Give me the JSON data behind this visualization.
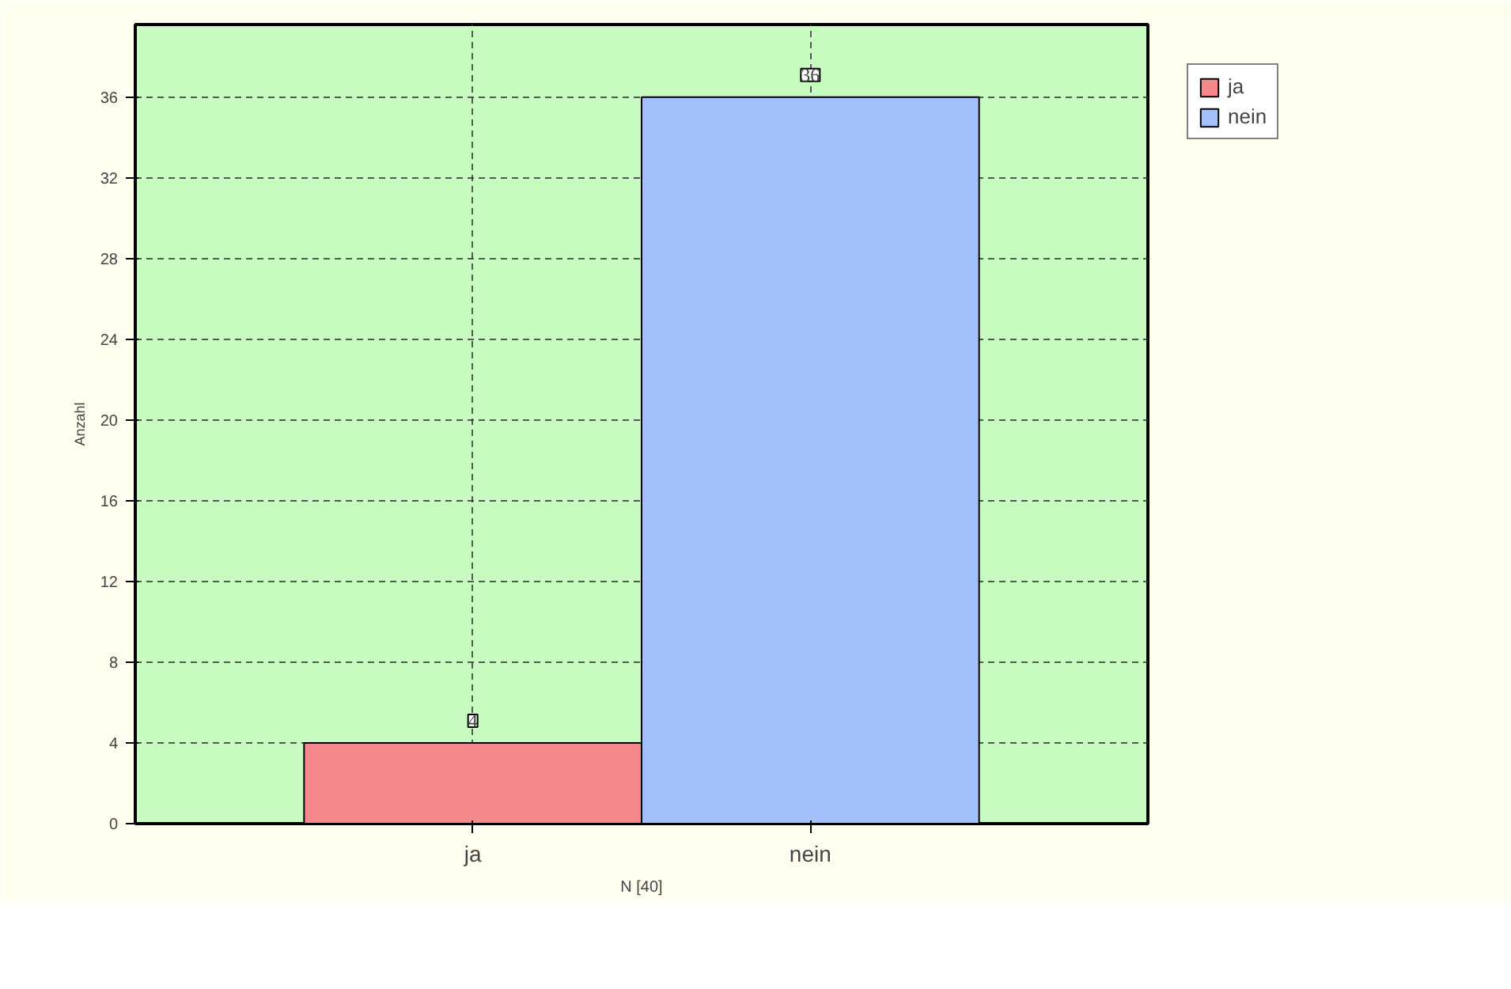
{
  "chart_data": {
    "type": "bar",
    "categories": [
      "ja",
      "nein"
    ],
    "series": [
      {
        "name": "ja",
        "color": "#f4888a",
        "values": [
          4,
          null
        ]
      },
      {
        "name": "nein",
        "color": "#a3c0fb",
        "values": [
          null,
          36
        ]
      }
    ],
    "xlabel": "N [40]",
    "ylabel": "Anzahl",
    "ylim": [
      0,
      39.6
    ],
    "yticks": [
      0,
      4,
      8,
      12,
      16,
      20,
      24,
      28,
      32,
      36
    ],
    "grid": true,
    "legend": "top right",
    "data_labels": true
  }
}
